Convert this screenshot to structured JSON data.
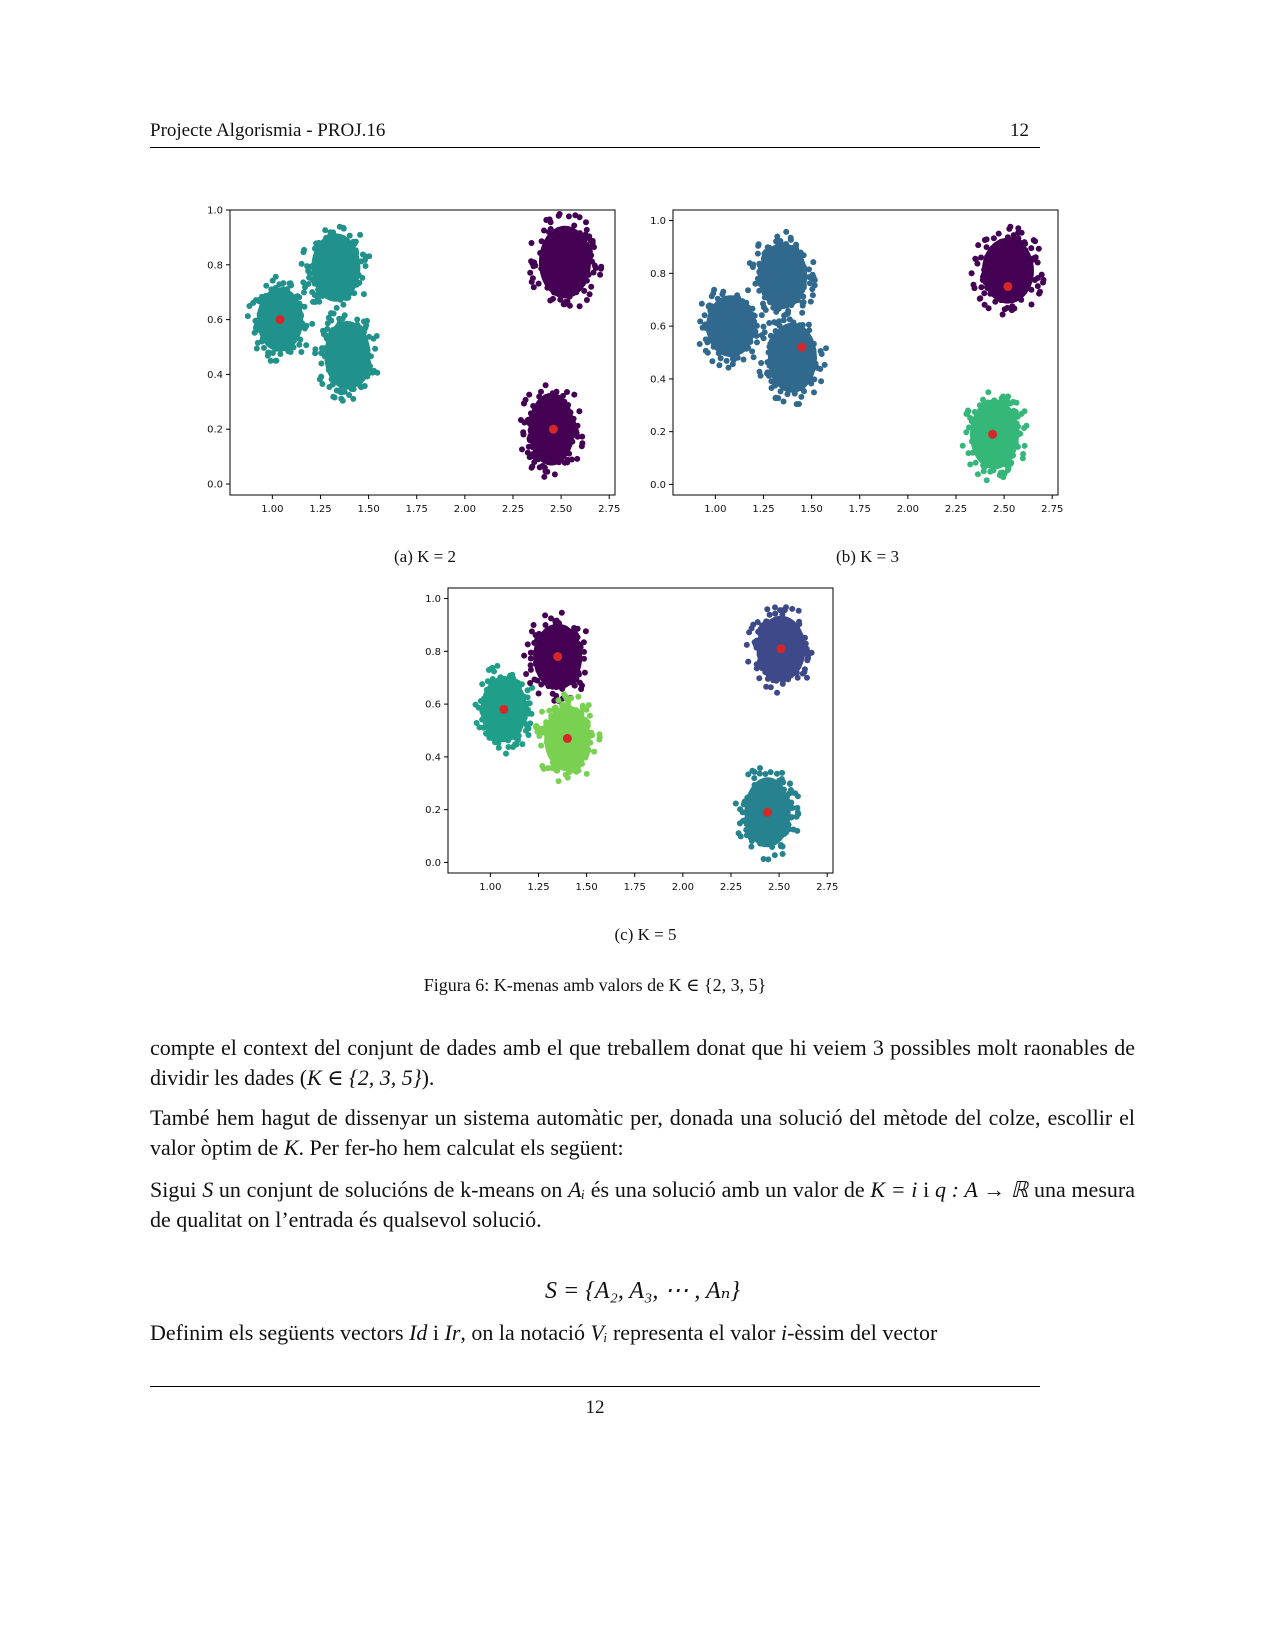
{
  "header": {
    "title": "Projecte Algorismia - PROJ.16",
    "page_number": "12"
  },
  "chart_data": [
    {
      "type": "scatter",
      "caption": "(a) K = 2",
      "xticks": [
        "1.00",
        "1.25",
        "1.50",
        "1.75",
        "2.00",
        "2.25",
        "2.50",
        "2.75"
      ],
      "yticks": [
        "0.0",
        "0.2",
        "0.4",
        "0.6",
        "0.8",
        "1.0"
      ],
      "xlim": [
        0.78,
        2.78
      ],
      "ylim": [
        -0.04,
        1.0
      ],
      "clusters": [
        {
          "cx": 1.04,
          "cy": 0.6,
          "rx": 0.16,
          "ry": 0.15,
          "color": "#21918c"
        },
        {
          "cx": 1.33,
          "cy": 0.79,
          "rx": 0.17,
          "ry": 0.16,
          "color": "#21918c"
        },
        {
          "cx": 1.39,
          "cy": 0.47,
          "rx": 0.16,
          "ry": 0.16,
          "color": "#21918c"
        },
        {
          "cx": 2.52,
          "cy": 0.81,
          "rx": 0.18,
          "ry": 0.17,
          "color": "#440154"
        },
        {
          "cx": 2.45,
          "cy": 0.2,
          "rx": 0.16,
          "ry": 0.17,
          "color": "#440154"
        }
      ],
      "centroids": [
        [
          1.04,
          0.6
        ],
        [
          2.46,
          0.2
        ]
      ]
    },
    {
      "type": "scatter",
      "caption": "(b) K = 3",
      "xticks": [
        "1.00",
        "1.25",
        "1.50",
        "1.75",
        "2.00",
        "2.25",
        "2.50",
        "2.75"
      ],
      "yticks": [
        "0.0",
        "0.2",
        "0.4",
        "0.6",
        "0.8",
        "1.0"
      ],
      "xlim": [
        0.78,
        2.78
      ],
      "ylim": [
        -0.04,
        1.04
      ],
      "clusters": [
        {
          "cx": 1.08,
          "cy": 0.6,
          "rx": 0.17,
          "ry": 0.15,
          "color": "#31688e"
        },
        {
          "cx": 1.35,
          "cy": 0.79,
          "rx": 0.17,
          "ry": 0.16,
          "color": "#31688e"
        },
        {
          "cx": 1.4,
          "cy": 0.48,
          "rx": 0.17,
          "ry": 0.17,
          "color": "#31688e"
        },
        {
          "cx": 2.52,
          "cy": 0.81,
          "rx": 0.18,
          "ry": 0.16,
          "color": "#440154"
        },
        {
          "cx": 2.45,
          "cy": 0.19,
          "rx": 0.17,
          "ry": 0.17,
          "color": "#35b779"
        }
      ],
      "centroids": [
        [
          1.45,
          0.52
        ],
        [
          2.52,
          0.75
        ],
        [
          2.44,
          0.19
        ]
      ]
    },
    {
      "type": "scatter",
      "caption": "(c) K = 5",
      "xticks": [
        "1.00",
        "1.25",
        "1.50",
        "1.75",
        "2.00",
        "2.25",
        "2.50",
        "2.75"
      ],
      "yticks": [
        "0.0",
        "0.2",
        "0.4",
        "0.6",
        "0.8",
        "1.0"
      ],
      "xlim": [
        0.78,
        2.78
      ],
      "ylim": [
        -0.04,
        1.04
      ],
      "clusters": [
        {
          "cx": 1.07,
          "cy": 0.58,
          "rx": 0.16,
          "ry": 0.16,
          "color": "#1f9e89"
        },
        {
          "cx": 1.35,
          "cy": 0.78,
          "rx": 0.17,
          "ry": 0.16,
          "color": "#440154"
        },
        {
          "cx": 1.4,
          "cy": 0.47,
          "rx": 0.16,
          "ry": 0.16,
          "color": "#7ad151"
        },
        {
          "cx": 2.51,
          "cy": 0.81,
          "rx": 0.17,
          "ry": 0.16,
          "color": "#3e4989"
        },
        {
          "cx": 2.44,
          "cy": 0.19,
          "rx": 0.16,
          "ry": 0.17,
          "color": "#26828e"
        }
      ],
      "centroids": [
        [
          1.07,
          0.58
        ],
        [
          1.35,
          0.78
        ],
        [
          1.4,
          0.47
        ],
        [
          2.51,
          0.81
        ],
        [
          2.44,
          0.19
        ]
      ]
    }
  ],
  "figure_caption": "Figura 6: K-menas amb valors de K ∈ {2, 3, 5}",
  "paragraphs": {
    "p1a": "compte el context del conjunt de dades amb el que treballem donat que hi veiem 3 possibles molt raonables de dividir les dades (",
    "p1math": "K ∈ {2, 3, 5}",
    "p1b": ").",
    "p2a": "També hem hagut de dissenyar un sistema automàtic per, donada una solució del mètode del colze, escollir el valor òptim de ",
    "p2var": "K",
    "p2b": ". Per fer-ho hem calculat els següent:",
    "p3a": "Sigui ",
    "p3S": "S",
    "p3b": " un conjunt de solucións de k-means on ",
    "p3Ai": "Aᵢ",
    "p3c": " és una solució amb un valor de ",
    "p3K": "K = i",
    "p3d": " i ",
    "p3q": "q : A → ℝ",
    "p3e": " una mesura de qualitat on l’entrada és qualsevol solució.",
    "eq": "S = {A₂, A₃, ⋯ , Aₙ}",
    "p4a": "Definim els següents vectors ",
    "p4Id": "Id",
    "p4b": " i ",
    "p4Ir": "Ir",
    "p4c": ", on la notació ",
    "p4Vi": "Vᵢ",
    "p4d": " representa el valor ",
    "p4i": "i",
    "p4e": "-èssim del vector"
  },
  "footer": {
    "page_number": "12"
  }
}
